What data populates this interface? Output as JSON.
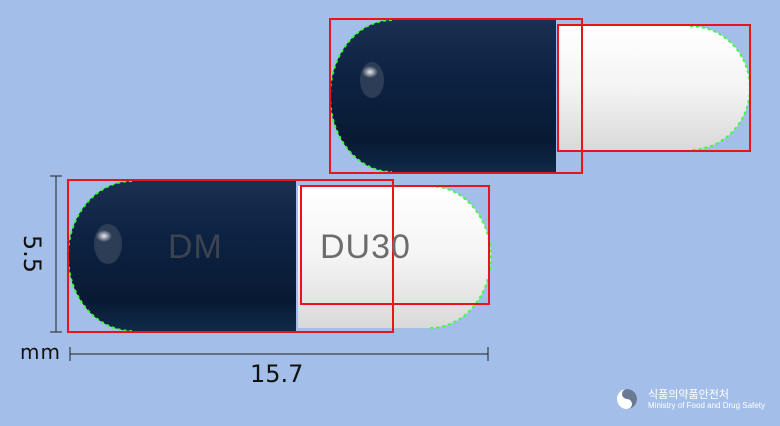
{
  "capsule_front": {
    "cap_imprint": "DM",
    "body_imprint": "DU30",
    "cap_color": "#0c1f3d",
    "body_color": "#f2f2f2"
  },
  "capsule_back": {
    "cap_color": "#0c1f3d",
    "body_color": "#f2f2f2"
  },
  "dimensions": {
    "length": "15.7",
    "height": "5.5",
    "unit": "mm"
  },
  "logo": {
    "korean": "식품의약품안전처",
    "english": "Ministry of Food and Drug Safety"
  },
  "colors": {
    "background": "#a3bfe9",
    "detection_box": "#e8141c",
    "contour": "#3cff3c"
  }
}
